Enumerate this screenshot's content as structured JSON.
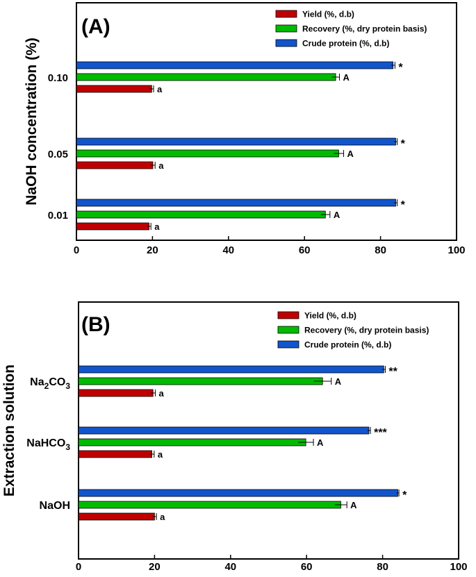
{
  "colors": {
    "yield": "#c00000",
    "recovery": "#00bb00",
    "crude_protein": "#1155cc",
    "axis": "#000000"
  },
  "chart_data": [
    {
      "type": "bar",
      "orientation": "horizontal",
      "panel_label": "(A)",
      "ylabel": "NaOH concentration (%)",
      "xlabel": "",
      "xlim": [
        0,
        100
      ],
      "xticks": [
        0,
        20,
        40,
        60,
        80,
        100
      ],
      "categories": [
        "0.01",
        "0.05",
        "0.10"
      ],
      "legend_position": "top-right",
      "series": [
        {
          "name": "Yield (%, d.b)",
          "color_key": "yield",
          "values": [
            19.1,
            20.1,
            19.8
          ],
          "errors": [
            0.5,
            0.6,
            0.5
          ],
          "labels": [
            "a",
            "a",
            "a"
          ]
        },
        {
          "name": "Recovery (%, dry protein basis)",
          "color_key": "recovery",
          "values": [
            65.5,
            69.0,
            68.2
          ],
          "errors": [
            1.2,
            1.3,
            1.0
          ],
          "labels": [
            "A",
            "A",
            "A"
          ]
        },
        {
          "name": "Crude protein (%, d.b)",
          "color_key": "crude_protein",
          "values": [
            84.0,
            84.0,
            83.3
          ],
          "errors": [
            0.4,
            0.4,
            0.5
          ],
          "labels": [
            "*",
            "*",
            "*"
          ]
        }
      ]
    },
    {
      "type": "bar",
      "orientation": "horizontal",
      "panel_label": "(B)",
      "ylabel": "Extraction solution",
      "xlabel": "",
      "xlim": [
        0,
        100
      ],
      "xticks": [
        0,
        20,
        40,
        60,
        80,
        100
      ],
      "categories": [
        "NaOH",
        "NaHCO3",
        "Na2CO3"
      ],
      "category_display": [
        {
          "main": "NaOH",
          "sub": "",
          "tail": ""
        },
        {
          "main": "NaHCO",
          "sub": "3",
          "tail": ""
        },
        {
          "main": "Na",
          "sub": "2",
          "tail": "CO",
          "sub2": "3"
        }
      ],
      "legend_position": "top-right",
      "series": [
        {
          "name": "Yield (%, d.b)",
          "color_key": "yield",
          "values": [
            20.0,
            19.3,
            19.6
          ],
          "errors": [
            0.5,
            0.6,
            0.6
          ],
          "labels": [
            "a",
            "a",
            "a"
          ]
        },
        {
          "name": "Recovery (%, dry protein basis)",
          "color_key": "recovery",
          "values": [
            69.0,
            59.8,
            64.2
          ],
          "errors": [
            1.6,
            2.0,
            2.3
          ],
          "labels": [
            "A",
            "A",
            "A"
          ]
        },
        {
          "name": "Crude protein (%, d.b)",
          "color_key": "crude_protein",
          "values": [
            84.0,
            76.4,
            80.3
          ],
          "errors": [
            0.3,
            0.4,
            0.4
          ],
          "labels": [
            "*",
            "***",
            "**"
          ]
        }
      ]
    }
  ]
}
